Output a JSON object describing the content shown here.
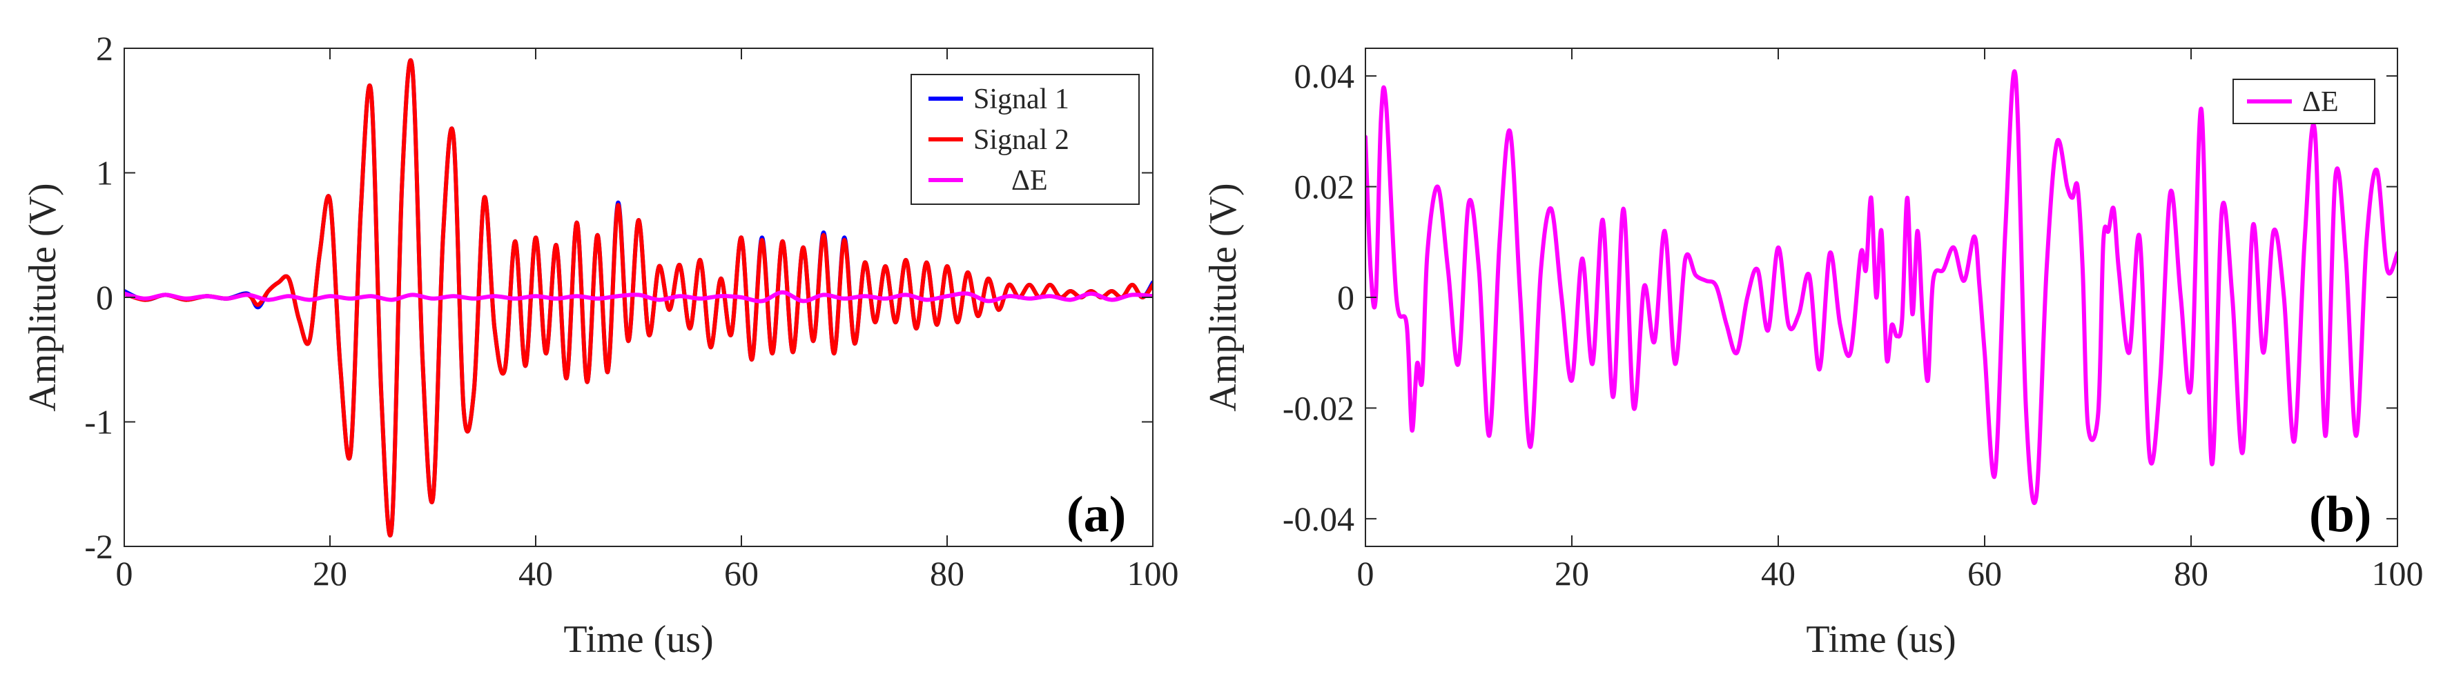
{
  "colors": {
    "signal1": "#0000ff",
    "signal2": "#ff0000",
    "deltaE": "#ff00ff",
    "axis": "#262626"
  },
  "chart_data": [
    {
      "type": "line",
      "panel_label": "(a)",
      "title": "",
      "xlabel": "Time (us)",
      "ylabel": "Amplitude (V)",
      "xlim": [
        0,
        100
      ],
      "ylim": [
        -2,
        2
      ],
      "xticks": [
        0,
        20,
        40,
        60,
        80,
        100
      ],
      "xtick_labels": [
        "0",
        "20",
        "40",
        "60",
        "80",
        "100"
      ],
      "yticks": [
        -2,
        -1,
        0,
        1,
        2
      ],
      "ytick_labels": [
        "-2",
        "-1",
        "0",
        "1",
        "2"
      ],
      "legend": [
        "Signal 1",
        "Signal 2",
        "ΔE"
      ],
      "legend_position": "top-right",
      "series": [
        {
          "name": "Signal 1",
          "color": "#0000ff",
          "x": [
            0,
            2,
            4,
            6,
            8,
            10,
            12,
            13,
            14,
            15,
            16,
            17,
            18,
            19,
            20,
            21,
            22,
            23,
            24,
            25,
            26,
            27,
            28,
            29,
            30,
            31,
            32,
            33,
            34,
            35,
            36,
            37,
            38,
            39,
            40,
            41,
            42,
            43,
            44,
            45,
            46,
            47,
            48,
            49,
            50,
            51,
            52,
            53,
            54,
            55,
            56,
            57,
            58,
            59,
            60,
            61,
            62,
            63,
            64,
            65,
            66,
            67,
            68,
            69,
            70,
            71,
            72,
            73,
            74,
            75,
            76,
            77,
            78,
            79,
            80,
            81,
            82,
            83,
            84,
            85,
            86,
            87,
            88,
            89,
            90,
            91,
            92,
            93,
            94,
            95,
            96,
            97,
            98,
            99,
            100
          ],
          "y": [
            0.05,
            -0.02,
            0.02,
            -0.02,
            0.01,
            -0.01,
            0.03,
            -0.08,
            0.05,
            0.12,
            0.15,
            -0.18,
            -0.35,
            0.35,
            0.78,
            -0.55,
            -1.25,
            0.7,
            1.65,
            -0.8,
            -1.85,
            0.9,
            1.85,
            -0.5,
            -1.62,
            0.5,
            1.3,
            -0.9,
            -0.75,
            0.8,
            -0.25,
            -0.58,
            0.45,
            -0.55,
            0.48,
            -0.45,
            0.42,
            -0.65,
            0.6,
            -0.68,
            0.5,
            -0.6,
            0.76,
            -0.35,
            0.62,
            -0.3,
            0.25,
            -0.1,
            0.26,
            -0.25,
            0.3,
            -0.4,
            0.15,
            -0.3,
            0.48,
            -0.5,
            0.48,
            -0.45,
            0.45,
            -0.44,
            0.4,
            -0.35,
            0.52,
            -0.45,
            0.48,
            -0.37,
            0.28,
            -0.2,
            0.25,
            -0.2,
            0.3,
            -0.25,
            0.28,
            -0.22,
            0.25,
            -0.2,
            0.2,
            -0.15,
            0.15,
            -0.1,
            0.1,
            0.0,
            0.1,
            0.0,
            0.1,
            0.0,
            0.05,
            0.0,
            0.05,
            0.0,
            0.05,
            0.0,
            0.1,
            0.0,
            0.12
          ]
        },
        {
          "name": "Signal 2",
          "color": "#ff0000",
          "x": [
            0,
            2,
            4,
            6,
            8,
            10,
            12,
            13,
            14,
            15,
            16,
            17,
            18,
            19,
            20,
            21,
            22,
            23,
            24,
            25,
            26,
            27,
            28,
            29,
            30,
            31,
            32,
            33,
            34,
            35,
            36,
            37,
            38,
            39,
            40,
            41,
            42,
            43,
            44,
            45,
            46,
            47,
            48,
            49,
            50,
            51,
            52,
            53,
            54,
            55,
            56,
            57,
            58,
            59,
            60,
            61,
            62,
            63,
            64,
            65,
            66,
            67,
            68,
            69,
            70,
            71,
            72,
            73,
            74,
            75,
            76,
            77,
            78,
            79,
            80,
            81,
            82,
            83,
            84,
            85,
            86,
            87,
            88,
            89,
            90,
            91,
            92,
            93,
            94,
            95,
            96,
            97,
            98,
            99,
            100
          ],
          "y": [
            0.03,
            -0.02,
            0.02,
            -0.02,
            0.01,
            -0.01,
            0.02,
            -0.06,
            0.05,
            0.12,
            0.15,
            -0.18,
            -0.35,
            0.35,
            0.78,
            -0.55,
            -1.25,
            0.7,
            1.65,
            -0.8,
            -1.85,
            0.9,
            1.85,
            -0.5,
            -1.62,
            0.5,
            1.3,
            -0.9,
            -0.75,
            0.8,
            -0.25,
            -0.58,
            0.45,
            -0.55,
            0.48,
            -0.45,
            0.42,
            -0.65,
            0.6,
            -0.68,
            0.5,
            -0.6,
            0.74,
            -0.35,
            0.62,
            -0.3,
            0.25,
            -0.1,
            0.26,
            -0.25,
            0.3,
            -0.4,
            0.15,
            -0.3,
            0.48,
            -0.5,
            0.46,
            -0.45,
            0.45,
            -0.44,
            0.4,
            -0.35,
            0.5,
            -0.45,
            0.46,
            -0.37,
            0.28,
            -0.2,
            0.25,
            -0.2,
            0.3,
            -0.25,
            0.28,
            -0.22,
            0.25,
            -0.2,
            0.2,
            -0.15,
            0.15,
            -0.1,
            0.1,
            0.0,
            0.1,
            0.0,
            0.1,
            0.0,
            0.05,
            0.0,
            0.05,
            0.0,
            0.05,
            0.0,
            0.1,
            0.0,
            0.1
          ]
        },
        {
          "name": "ΔE",
          "color": "#ff00ff",
          "x": [
            0,
            2,
            4,
            6,
            8,
            10,
            12,
            14,
            16,
            18,
            20,
            22,
            24,
            26,
            28,
            30,
            32,
            34,
            36,
            38,
            40,
            42,
            44,
            46,
            48,
            50,
            52,
            54,
            56,
            58,
            60,
            62,
            64,
            66,
            68,
            70,
            72,
            74,
            76,
            78,
            80,
            82,
            84,
            86,
            88,
            90,
            92,
            94,
            96,
            98,
            100
          ],
          "y": [
            0.03,
            -0.01,
            0.02,
            -0.01,
            0.01,
            -0.01,
            0.02,
            -0.02,
            0.01,
            -0.02,
            0.01,
            -0.01,
            0.01,
            -0.02,
            0.02,
            -0.01,
            0.01,
            -0.01,
            0.01,
            -0.01,
            0.01,
            -0.01,
            0.01,
            -0.01,
            0.01,
            0.02,
            -0.02,
            0.01,
            -0.01,
            0.01,
            0.0,
            -0.03,
            0.04,
            -0.03,
            0.02,
            -0.01,
            0.01,
            -0.01,
            0.02,
            -0.02,
            0.01,
            0.03,
            -0.03,
            0.01,
            -0.01,
            0.01,
            -0.02,
            0.03,
            -0.02,
            0.02,
            0.01
          ]
        }
      ]
    },
    {
      "type": "line",
      "panel_label": "(b)",
      "title": "",
      "xlabel": "Time (us)",
      "ylabel": "Amplitude (V)",
      "xlim": [
        0,
        100
      ],
      "ylim": [
        -0.045,
        0.045
      ],
      "xticks": [
        0,
        20,
        40,
        60,
        80,
        100
      ],
      "xtick_labels": [
        "0",
        "20",
        "40",
        "60",
        "80",
        "100"
      ],
      "yticks": [
        -0.04,
        -0.02,
        0,
        0.02,
        0.04
      ],
      "ytick_labels": [
        "-0.04",
        "-0.02",
        "0",
        "0.02",
        "0.04"
      ],
      "legend": [
        "ΔE"
      ],
      "legend_position": "top-right",
      "series": [
        {
          "name": "ΔE",
          "color": "#ff00ff",
          "x": [
            0,
            0.5,
            1,
            1.5,
            2,
            3,
            4,
            4.5,
            5,
            5.5,
            6,
            7,
            8,
            9,
            10,
            11,
            12,
            13,
            14,
            15,
            16,
            17,
            18,
            19,
            20,
            21,
            22,
            23,
            24,
            25,
            26,
            27,
            28,
            29,
            30,
            31,
            32,
            33,
            34,
            35,
            36,
            37,
            38,
            39,
            40,
            41,
            42,
            43,
            44,
            45,
            46,
            47,
            48,
            48.5,
            49,
            49.5,
            50,
            50.5,
            51,
            51.5,
            52,
            52.5,
            53,
            53.5,
            54,
            54.5,
            55,
            56,
            57,
            58,
            59,
            59.5,
            60,
            61,
            62,
            63,
            64,
            65,
            66,
            67,
            68,
            68.5,
            69,
            69.5,
            70,
            71,
            71.5,
            72,
            72.5,
            73,
            74,
            75,
            76,
            77,
            78,
            79,
            80,
            81,
            82,
            83,
            84,
            85,
            86,
            87,
            88,
            89,
            90,
            91,
            92,
            93,
            94,
            95,
            96,
            97,
            98,
            99,
            100
          ],
          "y": [
            0.029,
            0.005,
            0.0,
            0.032,
            0.035,
            0.0,
            -0.005,
            -0.024,
            -0.012,
            -0.015,
            0.008,
            0.02,
            0.005,
            -0.012,
            0.017,
            0.005,
            -0.025,
            0.01,
            0.03,
            0.0,
            -0.027,
            0.005,
            0.016,
            0.0,
            -0.015,
            0.007,
            -0.012,
            0.014,
            -0.018,
            0.016,
            -0.02,
            0.002,
            -0.008,
            0.012,
            -0.012,
            0.007,
            0.004,
            0.003,
            0.002,
            -0.005,
            -0.01,
            0.0,
            0.005,
            -0.006,
            0.009,
            -0.005,
            -0.003,
            0.004,
            -0.013,
            0.008,
            -0.005,
            -0.01,
            0.008,
            0.005,
            0.018,
            0.0,
            0.012,
            -0.011,
            -0.005,
            -0.007,
            -0.004,
            0.018,
            -0.003,
            0.012,
            -0.004,
            -0.015,
            0.003,
            0.005,
            0.009,
            0.003,
            0.011,
            0.002,
            -0.01,
            -0.032,
            0.012,
            0.04,
            -0.02,
            -0.036,
            0.005,
            0.028,
            0.02,
            0.018,
            0.02,
            0.005,
            -0.023,
            -0.021,
            0.01,
            0.012,
            0.016,
            0.005,
            -0.01,
            0.011,
            -0.029,
            -0.015,
            0.019,
            0.0,
            -0.016,
            0.034,
            -0.03,
            0.016,
            0.0,
            -0.028,
            0.013,
            -0.01,
            0.012,
            0.0,
            -0.026,
            0.01,
            0.03,
            -0.025,
            0.022,
            0.007,
            -0.025,
            0.01,
            0.023,
            0.005,
            0.008
          ]
        }
      ]
    }
  ]
}
